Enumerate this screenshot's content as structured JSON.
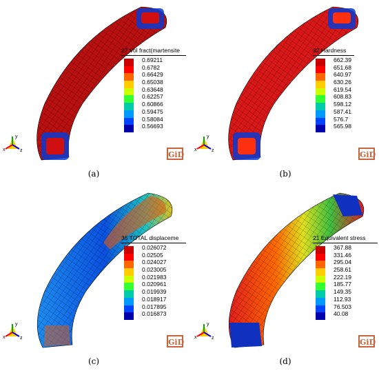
{
  "panels": [
    {
      "id": "a",
      "caption": "(a)",
      "legend_title": "27 Vol fract(martensite",
      "ticks": [
        "0.69211",
        "0.6782",
        "0.66429",
        "0.65038",
        "0.63648",
        "0.62257",
        "0.60866",
        "0.59475",
        "0.58084",
        "0.56693"
      ],
      "colors": [
        "#c80000",
        "#ff0000",
        "#ff6600",
        "#ffcc00",
        "#ccff00",
        "#33ff33",
        "#00ccaa",
        "#0099ff",
        "#0044ff",
        "#0000aa"
      ],
      "ring_fill": "#b01010",
      "ring_mid": "#c81414"
    },
    {
      "id": "b",
      "caption": "(b)",
      "legend_title": "32 Hardness",
      "ticks": [
        "662.39",
        "651.68",
        "640.97",
        "630.26",
        "619.54",
        "608.83",
        "598.12",
        "587.41",
        "576.7",
        "565.98"
      ],
      "colors": [
        "#c80000",
        "#ff0000",
        "#ff6600",
        "#ffcc00",
        "#ccff00",
        "#33ff33",
        "#00ccaa",
        "#0099ff",
        "#0044ff",
        "#0000aa"
      ],
      "ring_fill": "#c01414",
      "ring_mid": "#e02020"
    },
    {
      "id": "c",
      "caption": "(c)",
      "legend_title": "36 TOTAL displaceme",
      "ticks": [
        "0.026072",
        "0.02505",
        "0.024027",
        "0.023005",
        "0.021983",
        "0.020961",
        "0.019939",
        "0.018917",
        "0.017895",
        "0.016873"
      ],
      "colors": [
        "#c80000",
        "#ff0000",
        "#ff6600",
        "#ffcc00",
        "#ccff00",
        "#33ff33",
        "#00ccaa",
        "#0099ff",
        "#0044ff",
        "#0000aa"
      ],
      "ring_fill": "#1e6ee6",
      "ring_mid": "#28b4c8"
    },
    {
      "id": "d",
      "caption": "(d)",
      "legend_title": "21 Equivalent stress",
      "ticks": [
        "367.88",
        "331.46",
        "295.04",
        "258.61",
        "222.19",
        "185.77",
        "149.35",
        "112.93",
        "76.503",
        "40.08"
      ],
      "colors": [
        "#c80000",
        "#ff0000",
        "#ff6600",
        "#ffcc00",
        "#ccff00",
        "#33ff33",
        "#00ccaa",
        "#0099ff",
        "#0044ff",
        "#0000aa"
      ],
      "ring_fill": "#e01e1e",
      "ring_mid": "#f0a000"
    }
  ],
  "logo_text": "GiD",
  "axis_labels": {
    "x": "x",
    "y": "y",
    "z": "z"
  }
}
